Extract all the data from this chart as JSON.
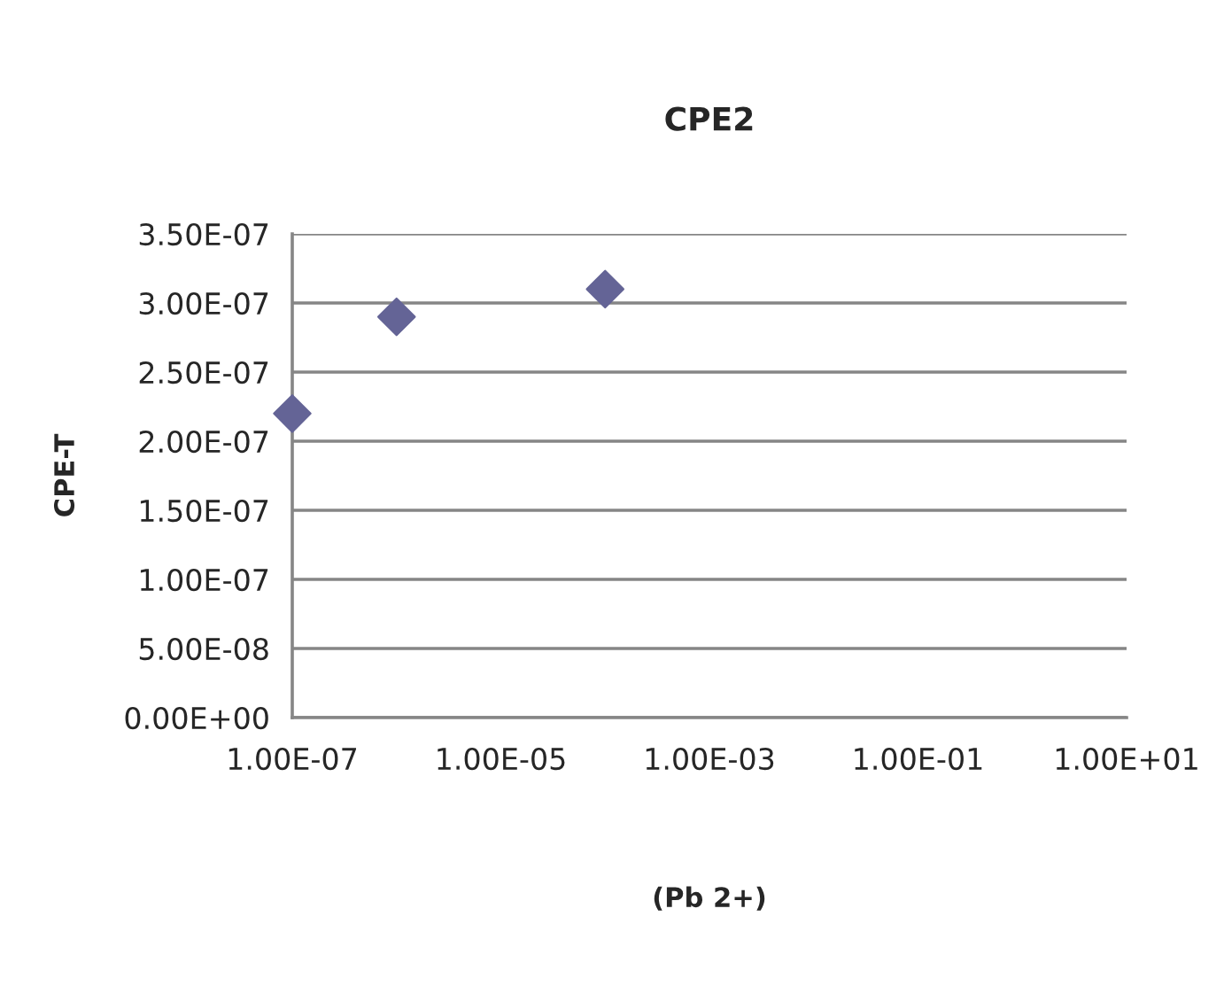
{
  "chart_data": {
    "type": "scatter",
    "title": "CPE2",
    "xlabel": "(Pb 2+)",
    "ylabel": "CPE-T",
    "log": "x",
    "marker": "diamond",
    "grid": "y",
    "legend": false,
    "x": [
      1e-07,
      1e-06,
      0.0001
    ],
    "series": [
      {
        "color": "#646496",
        "values": [
          2.2e-07,
          2.9e-07,
          3.1e-07
        ]
      }
    ],
    "xlim": [
      1e-07,
      10
    ],
    "xticks": [
      {
        "value": 1e-07,
        "label": "1.00E-07"
      },
      {
        "value": 1e-05,
        "label": "1.00E-05"
      },
      {
        "value": 0.001,
        "label": "1.00E-03"
      },
      {
        "value": 0.1,
        "label": "1.00E-01"
      },
      {
        "value": 10,
        "label": "1.00E+01"
      }
    ],
    "ylim": [
      0,
      3.5e-07
    ],
    "yticks": [
      {
        "value": 0,
        "label": "0.00E+00"
      },
      {
        "value": 5e-08,
        "label": "5.00E-08"
      },
      {
        "value": 1e-07,
        "label": "1.00E-07"
      },
      {
        "value": 1.5e-07,
        "label": "1.50E-07"
      },
      {
        "value": 2e-07,
        "label": "2.00E-07"
      },
      {
        "value": 2.5e-07,
        "label": "2.50E-07"
      },
      {
        "value": 3e-07,
        "label": "3.00E-07"
      },
      {
        "value": 3.5e-07,
        "label": "3.50E-07"
      }
    ]
  }
}
